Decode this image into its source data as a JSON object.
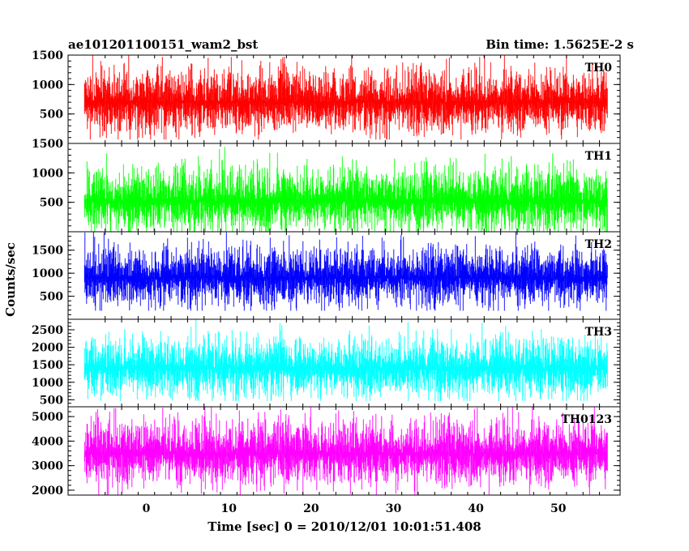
{
  "header": {
    "title": "ae101201100151_wam2_bst",
    "bin_time": "Bin time: 1.5625E-2 s"
  },
  "chart_data": {
    "type": "line",
    "title": "ae101201100151_wam2_bst",
    "xlabel": "Time [sec] 0 = 2010/12/01 10:01:51.408",
    "ylabel": "Counts/sec",
    "xlim": [
      -9.5,
      57.5
    ],
    "x_ticks": [
      0,
      10,
      20,
      30,
      40,
      50
    ],
    "x_range": [
      -7.5,
      56
    ],
    "grid": false,
    "panels": [
      {
        "name": "TH0",
        "color": "#ff0000",
        "ylim": [
          0,
          1500
        ],
        "y_ticks": [
          500,
          1000,
          1500
        ],
        "mean": 700,
        "low": 120,
        "high": 1500
      },
      {
        "name": "TH1",
        "color": "#00ff00",
        "ylim": [
          0,
          1500
        ],
        "y_ticks": [
          500,
          1000,
          1500
        ],
        "mean": 520,
        "low": 60,
        "high": 1450
      },
      {
        "name": "TH2",
        "color": "#0000ff",
        "ylim": [
          0,
          1900
        ],
        "y_ticks": [
          500,
          1000,
          1500
        ],
        "mean": 900,
        "low": 250,
        "high": 1900
      },
      {
        "name": "TH3",
        "color": "#00ffff",
        "ylim": [
          300,
          2800
        ],
        "y_ticks": [
          500,
          1000,
          1500,
          2000,
          2500
        ],
        "mean": 1400,
        "low": 550,
        "high": 2700
      },
      {
        "name": "TH0123",
        "color": "#ff00ff",
        "ylim": [
          1800,
          5400
        ],
        "y_ticks": [
          2000,
          3000,
          4000,
          5000
        ],
        "mean": 3500,
        "low": 1900,
        "high": 5300
      }
    ]
  }
}
